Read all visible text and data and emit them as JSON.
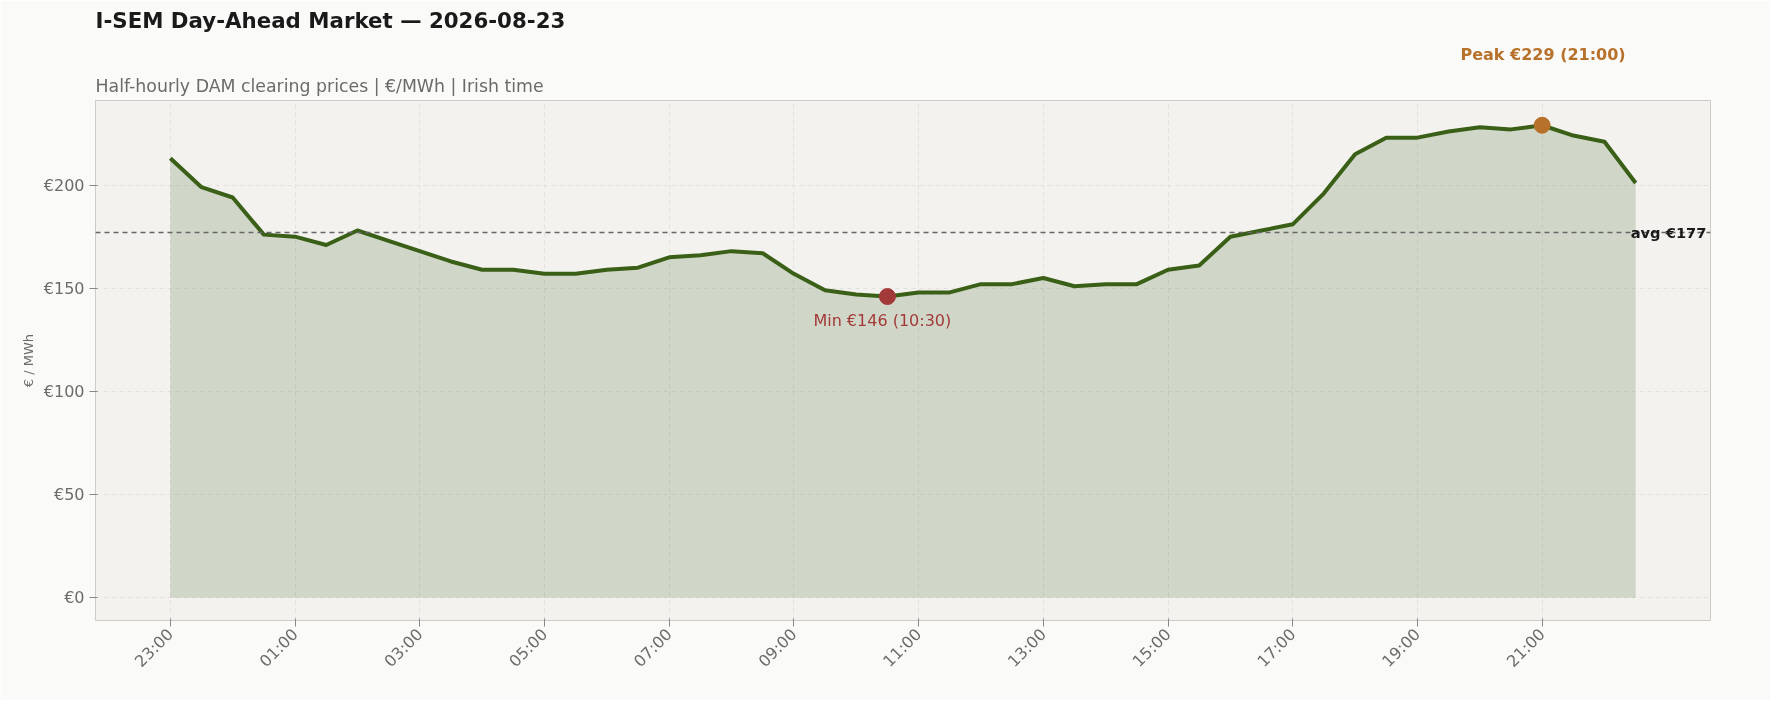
{
  "chart_data": {
    "type": "area",
    "title": "I-SEM Day-Ahead Market — 2026-08-23",
    "subtitle": "Half-hourly DAM clearing prices  |  €/MWh  |  Irish time",
    "ylabel": "€ / MWh",
    "categories": [
      "23:00",
      null,
      null,
      null,
      "01:00",
      null,
      null,
      null,
      "03:00",
      null,
      null,
      null,
      "05:00",
      null,
      null,
      null,
      "07:00",
      null,
      null,
      null,
      "09:00",
      null,
      null,
      null,
      "11:00",
      null,
      null,
      null,
      "13:00",
      null,
      null,
      null,
      "15:00",
      null,
      null,
      null,
      "17:00",
      null,
      null,
      null,
      "19:00",
      null,
      null,
      null,
      "21:00",
      null,
      null,
      null
    ],
    "series": [
      {
        "color": "#3a5f17",
        "values": [
          213,
          199,
          194,
          176,
          175,
          171,
          178,
          173,
          168,
          163,
          159,
          159,
          157,
          157,
          159,
          160,
          165,
          166,
          168,
          167,
          157,
          149,
          147,
          146,
          148,
          148,
          152,
          152,
          155,
          151,
          152,
          152,
          159,
          161,
          175,
          178,
          181,
          196,
          215,
          223,
          223,
          226,
          228,
          227,
          229,
          224,
          221,
          201
        ]
      },
      {
        "type": "scatter",
        "color": "#a33a3a",
        "values": [
          null,
          null,
          null,
          null,
          null,
          null,
          null,
          null,
          null,
          null,
          null,
          null,
          null,
          null,
          null,
          null,
          null,
          null,
          null,
          null,
          null,
          null,
          null,
          146,
          null,
          null,
          null,
          null,
          null,
          null,
          null,
          null,
          null,
          null,
          null,
          null,
          null,
          null,
          null,
          null,
          null,
          null,
          null,
          null,
          null,
          null,
          null,
          null
        ]
      },
      {
        "type": "scatter",
        "color": "#b8712a",
        "values": [
          null,
          null,
          null,
          null,
          null,
          null,
          null,
          null,
          null,
          null,
          null,
          null,
          null,
          null,
          null,
          null,
          null,
          null,
          null,
          null,
          null,
          null,
          null,
          null,
          null,
          null,
          null,
          null,
          null,
          null,
          null,
          null,
          null,
          null,
          null,
          null,
          null,
          null,
          null,
          null,
          null,
          null,
          null,
          null,
          229,
          null,
          null,
          null
        ]
      }
    ],
    "ylim": [
      -11,
      241
    ],
    "yticks": [
      {
        "value": 0,
        "label": "€0"
      },
      {
        "value": 50,
        "label": "€50"
      },
      {
        "value": 100,
        "label": "€100"
      },
      {
        "value": 150,
        "label": "€150"
      },
      {
        "value": 200,
        "label": "€200"
      }
    ],
    "ref_lines": [
      {
        "axis": "y",
        "value": 177,
        "label": "avg €177",
        "color": "#666666",
        "line_style": "dashed"
      }
    ],
    "annotations": [
      "Min  €146  (10:30)",
      "Peak  €229  (21:00)"
    ],
    "grid": true
  }
}
